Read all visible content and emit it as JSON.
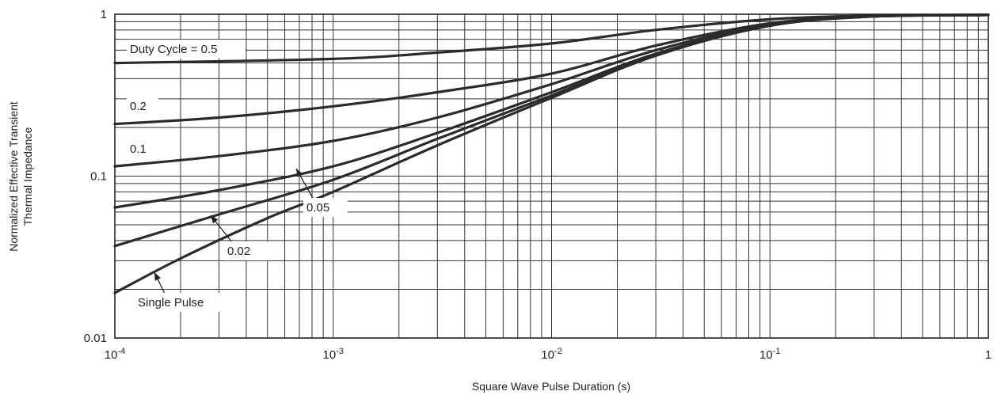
{
  "chart_data": {
    "type": "line",
    "xscale": "log",
    "yscale": "log",
    "xlim": [
      0.0001,
      1
    ],
    "ylim": [
      0.01,
      1
    ],
    "grid": true,
    "xlabel": "Square Wave Pulse Duration (s)",
    "ylabel_lines": [
      "Normalized Effective Transient",
      "Thermal Impedance"
    ],
    "x_ticks": [
      {
        "value": 0.0001,
        "base": "10",
        "exp": "-4"
      },
      {
        "value": 0.001,
        "base": "10",
        "exp": "-3"
      },
      {
        "value": 0.01,
        "base": "10",
        "exp": "-2"
      },
      {
        "value": 0.1,
        "base": "10",
        "exp": "-1"
      },
      {
        "value": 1,
        "base": "1",
        "exp": ""
      }
    ],
    "y_ticks": [
      {
        "value": 0.01,
        "label": "0.01"
      },
      {
        "value": 0.1,
        "label": "0.1"
      },
      {
        "value": 1,
        "label": "1"
      }
    ],
    "series": [
      {
        "label": "Duty Cycle = 0.5",
        "x": [
          0.0001,
          0.001,
          0.003,
          0.01,
          0.03,
          0.1,
          0.3,
          1
        ],
        "y": [
          0.5,
          0.53,
          0.58,
          0.66,
          0.8,
          0.93,
          0.98,
          0.99
        ]
      },
      {
        "label": "0.2",
        "x": [
          0.0001,
          0.0003,
          0.001,
          0.003,
          0.01,
          0.03,
          0.1,
          0.3,
          1
        ],
        "y": [
          0.21,
          0.23,
          0.27,
          0.33,
          0.43,
          0.64,
          0.88,
          0.97,
          0.99
        ]
      },
      {
        "label": "0.1",
        "x": [
          0.0001,
          0.0003,
          0.001,
          0.003,
          0.01,
          0.03,
          0.1,
          0.3,
          1
        ],
        "y": [
          0.115,
          0.133,
          0.165,
          0.23,
          0.37,
          0.6,
          0.87,
          0.97,
          0.99
        ]
      },
      {
        "label": "0.05",
        "x": [
          0.0001,
          0.0003,
          0.001,
          0.003,
          0.01,
          0.03,
          0.1,
          0.3,
          1
        ],
        "y": [
          0.064,
          0.082,
          0.115,
          0.185,
          0.33,
          0.57,
          0.86,
          0.97,
          0.99
        ]
      },
      {
        "label": "0.02",
        "x": [
          0.0001,
          0.0003,
          0.001,
          0.003,
          0.01,
          0.03,
          0.1,
          0.3,
          1
        ],
        "y": [
          0.037,
          0.058,
          0.095,
          0.17,
          0.315,
          0.56,
          0.85,
          0.97,
          0.99
        ]
      },
      {
        "label": "Single Pulse",
        "x": [
          0.0001,
          0.0002,
          0.0005,
          0.001,
          0.003,
          0.01,
          0.03,
          0.1,
          0.3,
          1
        ],
        "y": [
          0.019,
          0.031,
          0.055,
          0.08,
          0.155,
          0.305,
          0.555,
          0.85,
          0.97,
          0.99
        ]
      }
    ],
    "annotations": [
      {
        "text": "Duty Cycle = 0.5",
        "series": "Duty Cycle = 0.5",
        "arrow": false
      },
      {
        "text": "0.2",
        "series": "0.2",
        "arrow": false
      },
      {
        "text": "0.1",
        "series": "0.1",
        "arrow": false
      },
      {
        "text": "0.05",
        "series": "0.05",
        "arrow": true
      },
      {
        "text": "0.02",
        "series": "0.02",
        "arrow": true
      },
      {
        "text": "Single Pulse",
        "series": "Single Pulse",
        "arrow": true
      }
    ]
  }
}
